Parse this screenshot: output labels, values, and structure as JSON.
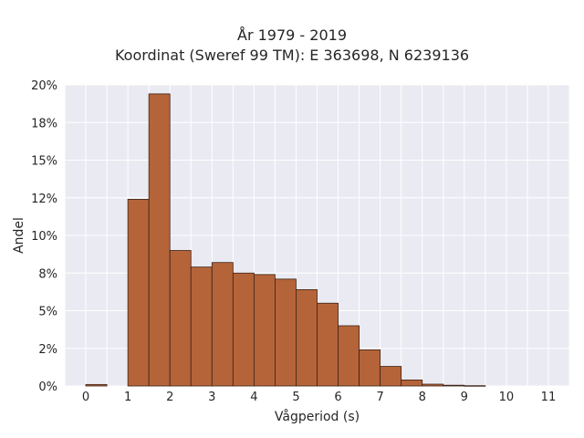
{
  "chart_data": {
    "type": "bar",
    "title": "År 1979 - 2019",
    "subtitle": "Koordinat (Sweref 99 TM): E 363698, N 6239136",
    "xlabel": "Vågperiod (s)",
    "ylabel": "Andel",
    "xlim": [
      -0.5,
      11.5
    ],
    "ylim": [
      0,
      0.2
    ],
    "x_ticks": [
      0,
      1,
      2,
      3,
      4,
      5,
      6,
      7,
      8,
      9,
      10,
      11
    ],
    "y_ticks": [
      0,
      0.025,
      0.05,
      0.075,
      0.1,
      0.125,
      0.15,
      0.175,
      0.2
    ],
    "y_tick_labels": [
      "0%",
      "2%",
      "5%",
      "8%",
      "10%",
      "12%",
      "15%",
      "18%",
      "20%"
    ],
    "bin_width": 0.5,
    "bins": [
      {
        "x0": 0.0,
        "value": 0.001
      },
      {
        "x0": 1.0,
        "value": 0.124
      },
      {
        "x0": 1.5,
        "value": 0.194
      },
      {
        "x0": 2.0,
        "value": 0.09
      },
      {
        "x0": 2.5,
        "value": 0.079
      },
      {
        "x0": 3.0,
        "value": 0.082
      },
      {
        "x0": 3.5,
        "value": 0.075
      },
      {
        "x0": 4.0,
        "value": 0.074
      },
      {
        "x0": 4.5,
        "value": 0.071
      },
      {
        "x0": 5.0,
        "value": 0.064
      },
      {
        "x0": 5.5,
        "value": 0.055
      },
      {
        "x0": 6.0,
        "value": 0.04
      },
      {
        "x0": 6.5,
        "value": 0.024
      },
      {
        "x0": 7.0,
        "value": 0.013
      },
      {
        "x0": 7.5,
        "value": 0.004
      },
      {
        "x0": 8.0,
        "value": 0.0012
      },
      {
        "x0": 8.5,
        "value": 0.0005
      },
      {
        "x0": 9.0,
        "value": 0.0002
      }
    ],
    "bar_color": "#b5643a",
    "bar_edge_color": "#3d2215",
    "plot_background": "#eaeaf2",
    "grid": true,
    "grid_color": "#ffffff"
  }
}
